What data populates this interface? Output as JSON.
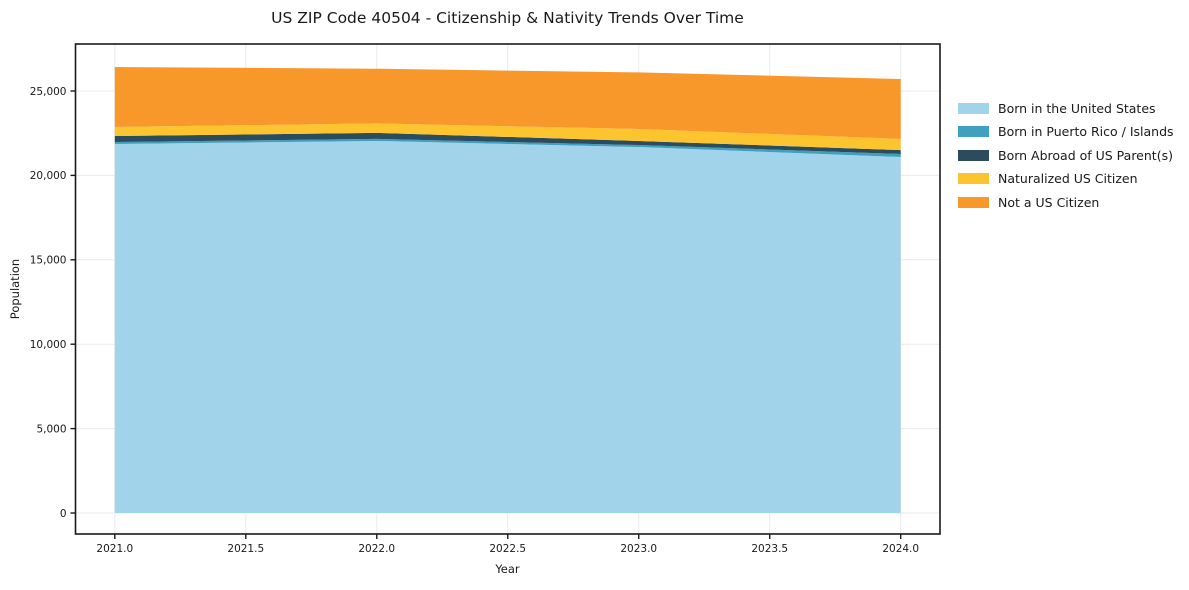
{
  "figure": {
    "background": "#ffffff"
  },
  "chart_data": {
    "type": "area",
    "stacked": true,
    "title": "US ZIP Code 40504 - Citizenship & Nativity Trends Over Time",
    "xlabel": "Year",
    "ylabel": "Population",
    "x": [
      2021,
      2022,
      2023,
      2024
    ],
    "series": [
      {
        "name": "Born in the United States",
        "color": "#a1d3ea",
        "values": [
          21860,
          22040,
          21680,
          21090
        ]
      },
      {
        "name": "Born in Puerto Rico / Islands",
        "color": "#3fa0c0",
        "values": [
          120,
          120,
          120,
          180
        ]
      },
      {
        "name": "Born Abroad of US Parent(s)",
        "color": "#2b4c5e",
        "values": [
          350,
          360,
          240,
          230
        ]
      },
      {
        "name": "Naturalized US Citizen",
        "color": "#fcc42e",
        "values": [
          540,
          560,
          710,
          660
        ]
      },
      {
        "name": "Not a US Citizen",
        "color": "#f8982b",
        "values": [
          3550,
          3240,
          3350,
          3550
        ]
      }
    ],
    "xticks": {
      "values": [
        2021,
        2021.5,
        2022,
        2022.5,
        2023,
        2023.5,
        2024
      ],
      "labels": [
        "2021.0",
        "2021.5",
        "2022.0",
        "2022.5",
        "2023.0",
        "2023.5",
        "2024.0"
      ]
    },
    "yticks": {
      "values": [
        0,
        5000,
        10000,
        15000,
        20000,
        25000
      ],
      "labels": [
        "0",
        "5,000",
        "10,000",
        "15,000",
        "20,000",
        "25,000"
      ]
    },
    "xlim": [
      2020.85,
      2024.15
    ],
    "ylim": [
      -1244,
      27784
    ],
    "grid": true,
    "grid_color": "#eaeaea",
    "axis_color": "#1a1a1a",
    "legend_position": "right-outside"
  }
}
